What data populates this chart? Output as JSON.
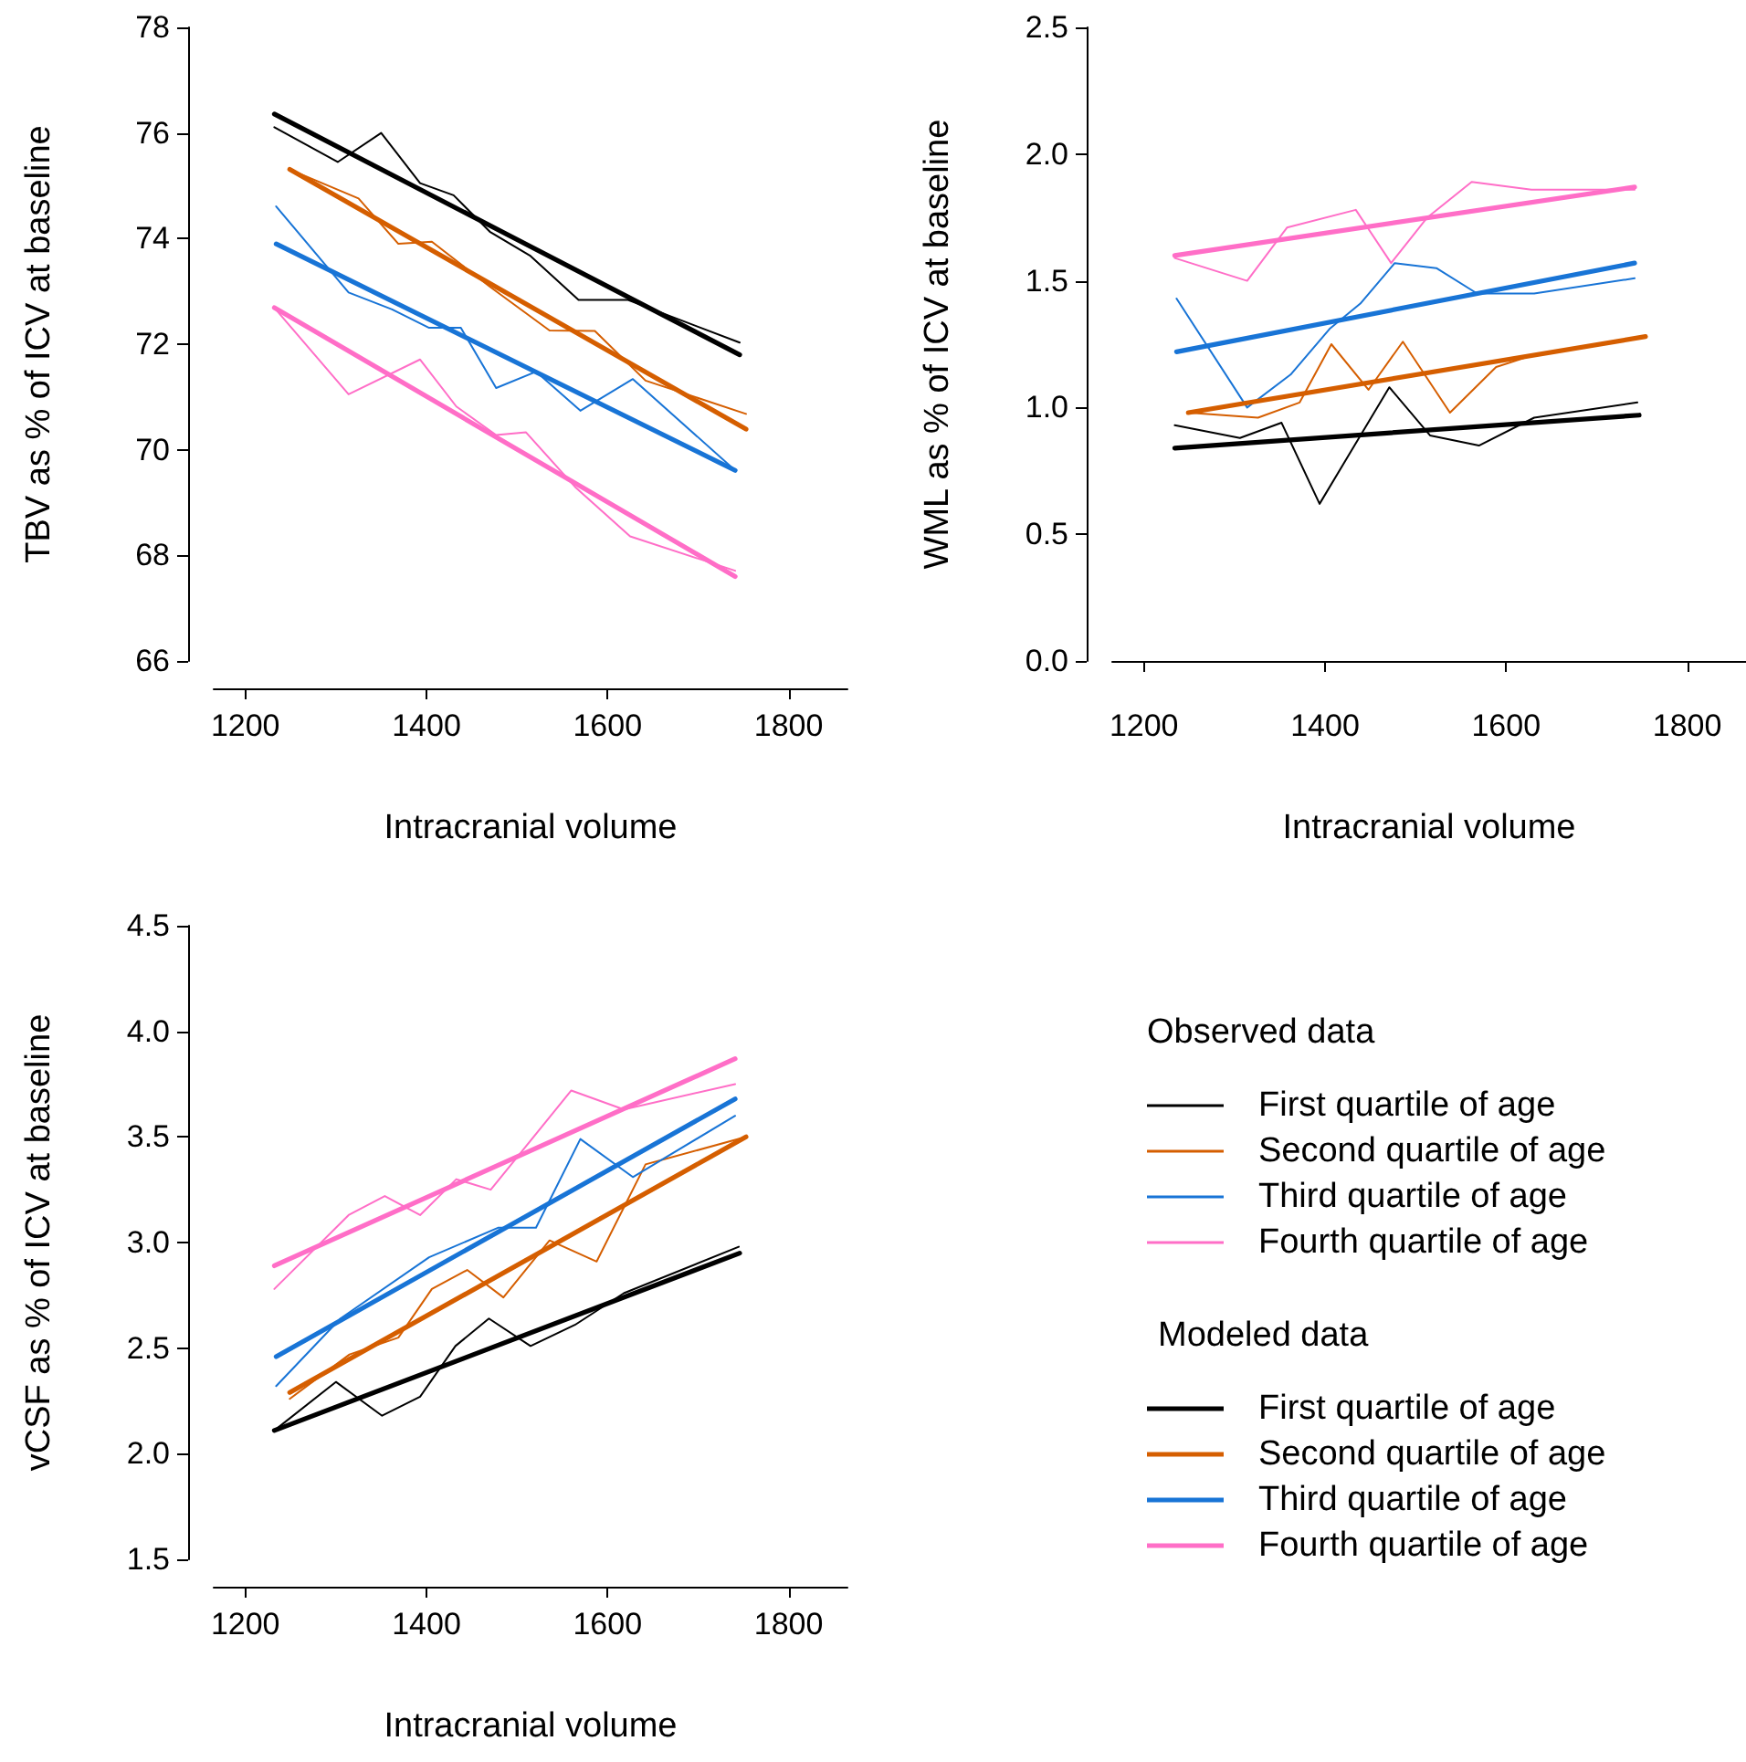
{
  "chart_data": [
    {
      "type": "line",
      "xlabel": "Intracranial volume",
      "ylabel": "TBV as % of ICV at baseline",
      "xlim": [
        1165,
        1865
      ],
      "xticks": [
        1200,
        1400,
        1600,
        1800
      ],
      "ylim": [
        66,
        78
      ],
      "yticks": [
        66,
        68,
        70,
        72,
        74,
        76,
        78
      ],
      "grid": false,
      "legend": false,
      "marker": "none",
      "series": [
        {
          "color": "#000000",
          "x": [
            1232,
            1302,
            1350,
            1393,
            1430,
            1470,
            1515,
            1568,
            1622,
            1746
          ],
          "values": [
            76.11,
            75.45,
            76.0,
            75.05,
            74.82,
            74.13,
            73.67,
            72.84,
            72.84,
            72.03
          ]
        },
        {
          "color": "#d55e00",
          "x": [
            1249,
            1325,
            1369,
            1406,
            1470,
            1536,
            1586,
            1642,
            1753
          ],
          "values": [
            75.31,
            74.76,
            73.9,
            73.94,
            73.09,
            72.26,
            72.25,
            71.31,
            70.68
          ]
        },
        {
          "color": "#1874d6",
          "x": [
            1234,
            1314,
            1362,
            1403,
            1438,
            1477,
            1521,
            1570,
            1628,
            1741
          ],
          "values": [
            74.61,
            72.98,
            72.66,
            72.31,
            72.31,
            71.17,
            71.48,
            70.74,
            71.34,
            69.61
          ]
        },
        {
          "color": "#ff6ec7",
          "x": [
            1232,
            1314,
            1393,
            1433,
            1477,
            1510,
            1564,
            1625,
            1741
          ],
          "values": [
            72.69,
            71.05,
            71.71,
            70.82,
            70.28,
            70.33,
            69.3,
            68.36,
            67.71
          ]
        },
        {
          "color": "#000000",
          "x": [
            1232,
            1746
          ],
          "values": [
            76.36,
            71.8
          ]
        },
        {
          "color": "#d55e00",
          "x": [
            1249,
            1753
          ],
          "values": [
            75.31,
            70.39
          ]
        },
        {
          "color": "#1874d6",
          "x": [
            1234,
            1741
          ],
          "values": [
            73.9,
            69.61
          ]
        },
        {
          "color": "#ff6ec7",
          "x": [
            1232,
            1741
          ],
          "values": [
            72.69,
            67.6
          ]
        }
      ]
    },
    {
      "type": "line",
      "xlabel": "Intracranial volume",
      "ylabel": "WML as % of ICV at baseline",
      "xlim": [
        1165,
        1865
      ],
      "xticks": [
        1200,
        1400,
        1600,
        1800
      ],
      "ylim": [
        0,
        2.5
      ],
      "yticks": [
        {
          "value": 0,
          "label": "0.0"
        },
        0.5,
        {
          "value": 1,
          "label": "1.0"
        },
        1.5,
        {
          "value": 2,
          "label": "2.0"
        },
        2.5
      ],
      "grid": false,
      "legend": false,
      "marker": "none",
      "series": [
        {
          "color": "#000000",
          "x": [
            1234,
            1306,
            1352,
            1394,
            1471,
            1516,
            1570,
            1631,
            1745
          ],
          "values": [
            0.93,
            0.88,
            0.94,
            0.62,
            1.08,
            0.89,
            0.85,
            0.96,
            1.02
          ]
        },
        {
          "color": "#d55e00",
          "x": [
            1249,
            1326,
            1372,
            1407,
            1448,
            1486,
            1538,
            1589,
            1624,
            1754
          ],
          "values": [
            0.98,
            0.96,
            1.02,
            1.25,
            1.07,
            1.26,
            0.98,
            1.16,
            1.2,
            1.28
          ]
        },
        {
          "color": "#1874d6",
          "x": [
            1236,
            1314,
            1362,
            1405,
            1439,
            1477,
            1523,
            1568,
            1631,
            1742
          ],
          "values": [
            1.43,
            1.0,
            1.13,
            1.31,
            1.41,
            1.57,
            1.55,
            1.45,
            1.45,
            1.51
          ]
        },
        {
          "color": "#ff6ec7",
          "x": [
            1234,
            1314,
            1358,
            1434,
            1473,
            1513,
            1562,
            1628,
            1742
          ],
          "values": [
            1.59,
            1.5,
            1.71,
            1.78,
            1.57,
            1.75,
            1.89,
            1.86,
            1.86
          ]
        },
        {
          "color": "#000000",
          "x": [
            1234,
            1747
          ],
          "values": [
            0.84,
            0.97
          ]
        },
        {
          "color": "#d55e00",
          "x": [
            1249,
            1754
          ],
          "values": [
            0.98,
            1.28
          ]
        },
        {
          "color": "#1874d6",
          "x": [
            1236,
            1742
          ],
          "values": [
            1.22,
            1.57
          ]
        },
        {
          "color": "#ff6ec7",
          "x": [
            1234,
            1742
          ],
          "values": [
            1.6,
            1.87
          ]
        }
      ]
    },
    {
      "type": "line",
      "xlabel": "Intracranial volume",
      "ylabel": "vCSF as % of ICV at baseline",
      "xlim": [
        1165,
        1865
      ],
      "xticks": [
        1200,
        1400,
        1600,
        1800
      ],
      "ylim": [
        1.5,
        4.5
      ],
      "yticks": [
        1.5,
        {
          "value": 2,
          "label": "2.0"
        },
        2.5,
        {
          "value": 3,
          "label": "3.0"
        },
        3.5,
        {
          "value": 4,
          "label": "4.0"
        },
        4.5
      ],
      "grid": false,
      "legend": "right",
      "legend_title": [
        "Observed data",
        "Modeled data"
      ],
      "marker": "none",
      "series": [
        {
          "name": "First quartile of age",
          "color": "#000000",
          "x": [
            1232,
            1300,
            1351,
            1393,
            1432,
            1469,
            1515,
            1564,
            1618,
            1745
          ],
          "values": [
            2.11,
            2.34,
            2.18,
            2.27,
            2.51,
            2.64,
            2.51,
            2.61,
            2.76,
            2.98
          ]
        },
        {
          "name": "Second quartile of age",
          "color": "#d55e00",
          "x": [
            1249,
            1315,
            1369,
            1406,
            1445,
            1485,
            1536,
            1588,
            1642,
            1753
          ],
          "values": [
            2.26,
            2.47,
            2.55,
            2.78,
            2.87,
            2.74,
            3.01,
            2.91,
            3.37,
            3.5
          ]
        },
        {
          "name": "Third quartile of age",
          "color": "#1874d6",
          "x": [
            1234,
            1305,
            1403,
            1479,
            1521,
            1570,
            1628,
            1741
          ],
          "values": [
            2.32,
            2.64,
            2.93,
            3.07,
            3.07,
            3.49,
            3.31,
            3.6
          ]
        },
        {
          "name": "Fourth quartile of age",
          "color": "#ff6ec7",
          "x": [
            1232,
            1314,
            1354,
            1393,
            1433,
            1471,
            1560,
            1618,
            1741
          ],
          "values": [
            2.78,
            3.13,
            3.22,
            3.13,
            3.3,
            3.25,
            3.72,
            3.63,
            3.75
          ]
        },
        {
          "name": "First quartile of age",
          "color": "#000000",
          "x": [
            1232,
            1746
          ],
          "values": [
            2.11,
            2.95
          ]
        },
        {
          "name": "Second quartile of age",
          "color": "#d55e00",
          "x": [
            1249,
            1753
          ],
          "values": [
            2.29,
            3.5
          ]
        },
        {
          "name": "Third quartile of age",
          "color": "#1874d6",
          "x": [
            1234,
            1741
          ],
          "values": [
            2.46,
            3.68
          ]
        },
        {
          "name": "Fourth quartile of age",
          "color": "#ff6ec7",
          "x": [
            1232,
            1741
          ],
          "values": [
            2.89,
            3.87
          ]
        }
      ]
    }
  ]
}
